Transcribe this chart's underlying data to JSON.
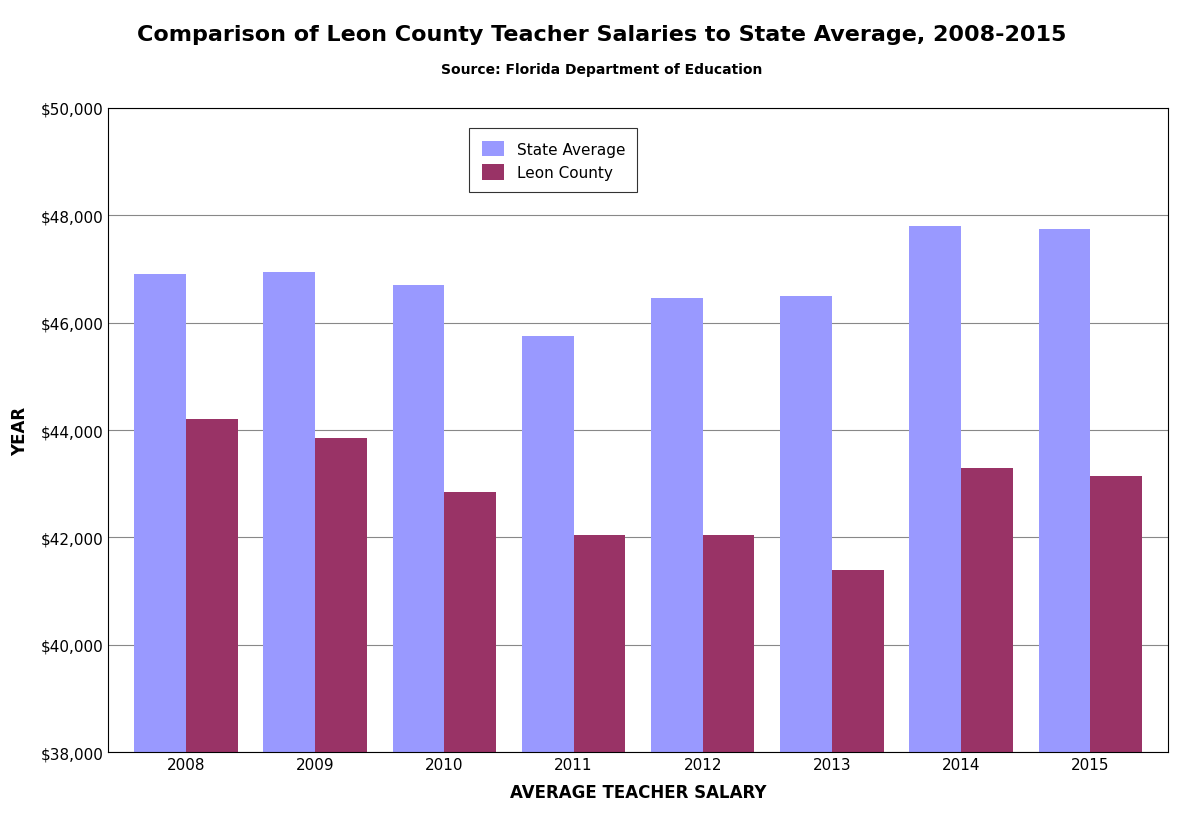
{
  "title": "Comparison of Leon County Teacher Salaries to State Average, 2008-2015",
  "subtitle": "Source: Florida Department of Education",
  "xlabel": "AVERAGE TEACHER SALARY",
  "ylabel": "YEAR",
  "years": [
    2008,
    2009,
    2010,
    2011,
    2012,
    2013,
    2014,
    2015
  ],
  "state_avg": [
    46900,
    46950,
    46700,
    45750,
    46450,
    46500,
    47800,
    47750
  ],
  "leon_county": [
    44200,
    43850,
    42850,
    42050,
    42050,
    41400,
    43300,
    43150
  ],
  "state_color": "#9999FF",
  "leon_color": "#993366",
  "ylim_min": 38000,
  "ylim_max": 50000,
  "ytick_step": 2000,
  "bar_width": 0.4,
  "legend_labels": [
    "State Average",
    "Leon County"
  ],
  "title_fontsize": 16,
  "subtitle_fontsize": 10,
  "axis_label_fontsize": 12,
  "tick_fontsize": 11,
  "legend_fontsize": 11,
  "bg_color": "#FFFFFF",
  "grid_color": "#888888"
}
